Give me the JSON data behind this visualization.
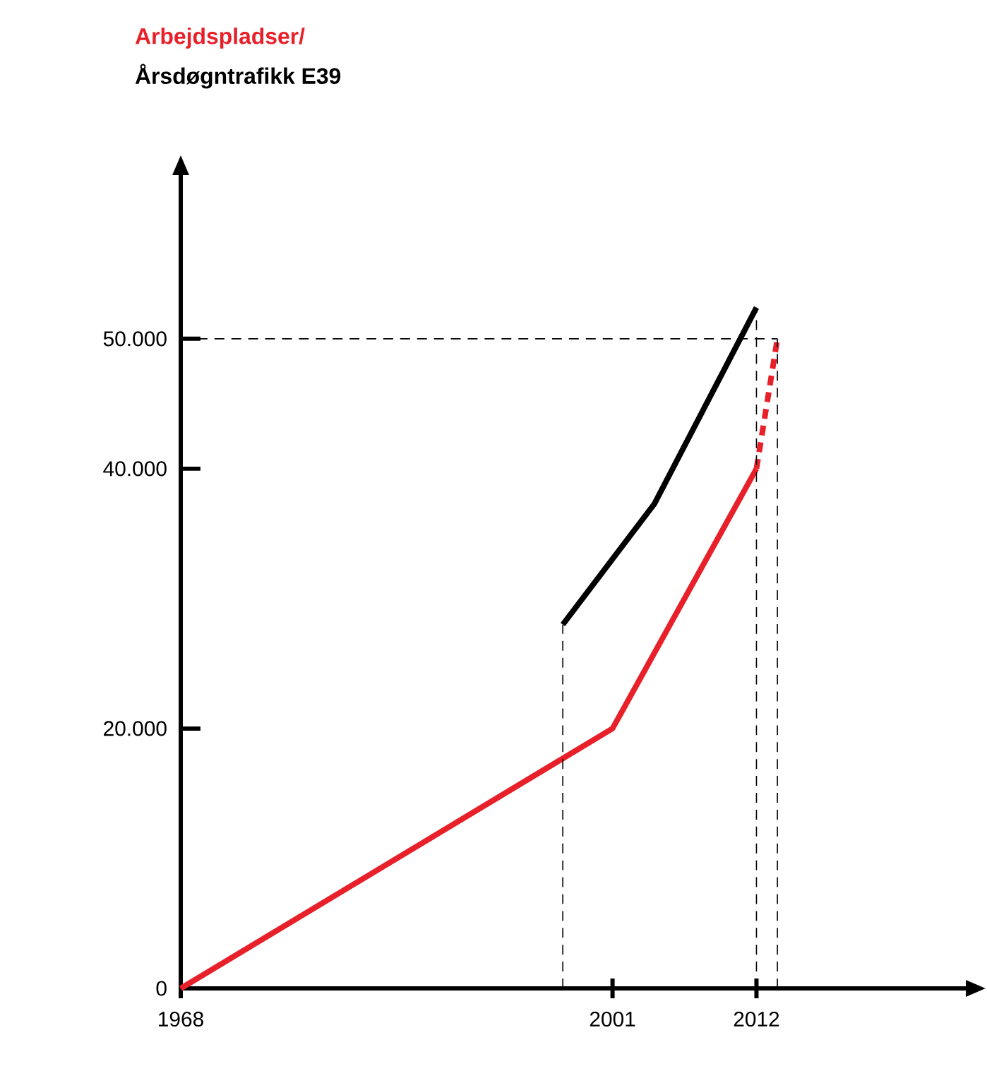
{
  "chart_data": {
    "type": "line",
    "xlim": [
      1968,
      2028
    ],
    "ylim": [
      0,
      62600
    ],
    "xticks": [
      1968,
      2001,
      2012
    ],
    "yticks": [
      0,
      {
        "value": 20000,
        "label": "20.000"
      },
      {
        "value": 40000,
        "label": "40.000"
      },
      {
        "value": 50000,
        "label": "50.000"
      }
    ],
    "series": [
      {
        "name": "Arbejdspladser/",
        "color": "#e8202a",
        "x": [
          1968,
          2001,
          2012
        ],
        "values": [
          0,
          20000,
          40000
        ]
      },
      {
        "color": "#e8202a",
        "x": [
          2012,
          2013.6
        ],
        "values": [
          40000,
          50000
        ],
        "line_style": "dashed"
      },
      {
        "name": "Årsdøgntrafikk E39",
        "color": "#000000",
        "x": [
          1997.2,
          2004.2,
          2012
        ],
        "values": [
          28000,
          37300,
          52400
        ]
      }
    ],
    "ref_lines": [
      {
        "axis": "x",
        "value": 1997.2,
        "line_style": "dashed"
      },
      {
        "axis": "x",
        "value": 2012,
        "line_style": "dashed"
      },
      {
        "axis": "x",
        "value": 2013.6,
        "line_style": "dashed"
      },
      {
        "axis": "y",
        "value": 50000,
        "line_style": "dashed"
      }
    ],
    "grid": false,
    "legend": false,
    "marker": "none",
    "line_style": "solid"
  }
}
